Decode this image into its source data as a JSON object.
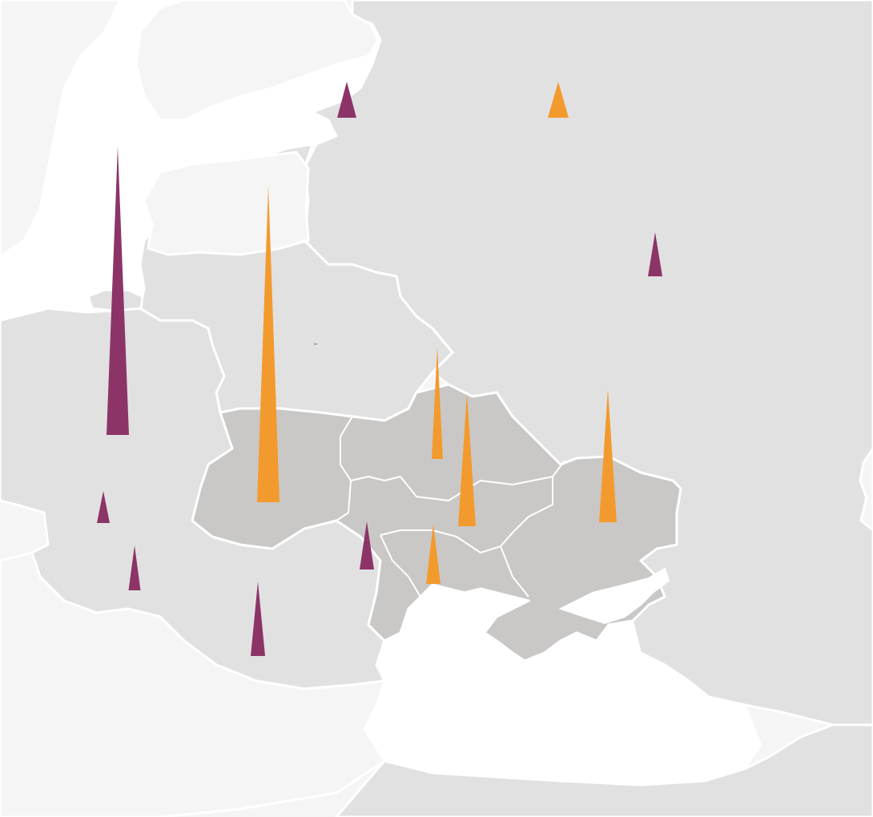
{
  "colors": {
    "series_a": "#8c3467",
    "series_b": "#f39a2e",
    "land_outside": "#f5f5f5",
    "land_neighbours": "#e1e1e1",
    "land_ukraine": "#cac8c6",
    "water": "#ffffff"
  },
  "spikes": [
    {
      "id": "spike-poland",
      "series": "a",
      "value": 360
    },
    {
      "id": "spike-belarus",
      "series": "a",
      "value": 1
    },
    {
      "id": "spike-russia-west",
      "series": "a",
      "value": 45
    },
    {
      "id": "spike-russia-east",
      "series": "a",
      "value": 55
    },
    {
      "id": "spike-slovakia",
      "series": "a",
      "value": 40
    },
    {
      "id": "spike-hungary",
      "series": "a",
      "value": 56
    },
    {
      "id": "spike-moldova",
      "series": "a",
      "value": 60
    },
    {
      "id": "spike-romania",
      "series": "a",
      "value": 93
    },
    {
      "id": "spike-ukraine-west",
      "series": "b",
      "value": 395
    },
    {
      "id": "spike-ukraine-center-north",
      "series": "b",
      "value": 140
    },
    {
      "id": "spike-ukraine-center",
      "series": "b",
      "value": 166
    },
    {
      "id": "spike-ukraine-east",
      "series": "b",
      "value": 166
    },
    {
      "id": "spike-ukraine-south",
      "series": "b",
      "value": 75
    },
    {
      "id": "spike-russia-north",
      "series": "b",
      "value": 45
    }
  ]
}
